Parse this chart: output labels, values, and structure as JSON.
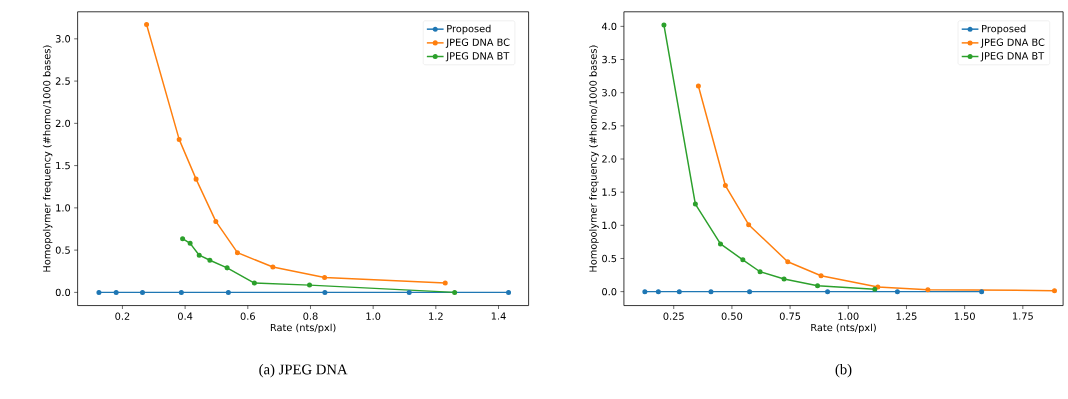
{
  "chart_data": [
    {
      "type": "line",
      "title": "(a) JPEG DNA",
      "xlabel": "Rate (nts/pxl)",
      "ylabel": "Homopolymer frequency (#homo/1000 bases)",
      "xlim": [
        0.057,
        1.496
      ],
      "ylim": [
        -0.156,
        3.32
      ],
      "xticks": [
        0.2,
        0.4,
        0.6,
        0.8,
        {
          "value": 1,
          "label": "1.0"
        },
        1.2,
        1.4
      ],
      "yticks": [
        {
          "value": 0,
          "label": "0.0"
        },
        0.5,
        {
          "value": 1,
          "label": "1.0"
        },
        1.5,
        {
          "value": 2,
          "label": "2.0"
        },
        2.5,
        {
          "value": 3,
          "label": "3.0"
        }
      ],
      "legend": "top right",
      "marker": "circle",
      "line_style": "solid",
      "grid": false,
      "series": [
        {
          "name": "Proposed",
          "color": "#1f77b4",
          "x": [
            0.125,
            0.18,
            0.264,
            0.388,
            0.538,
            0.846,
            1.115,
            1.432
          ],
          "values": [
            0,
            0,
            0,
            0,
            0,
            0,
            0,
            0
          ]
        },
        {
          "name": "JPEG DNA BC",
          "color": "#ff7f0e",
          "x": [
            0.277,
            0.381,
            0.435,
            0.498,
            0.567,
            0.68,
            0.845,
            1.23
          ],
          "values": [
            3.17,
            1.81,
            1.34,
            0.84,
            0.47,
            0.3,
            0.175,
            0.11
          ]
        },
        {
          "name": "JPEG DNA BT",
          "color": "#2ca02c",
          "x": [
            0.392,
            0.416,
            0.445,
            0.479,
            0.534,
            0.621,
            0.797,
            1.26
          ],
          "values": [
            0.635,
            0.58,
            0.44,
            0.38,
            0.29,
            0.11,
            0.086,
            0.0
          ]
        }
      ]
    },
    {
      "type": "line",
      "title": "(b)",
      "xlabel": "Rate (nts/pxl)",
      "ylabel": "Homopolymer frequency (#homo/1000 bases)",
      "xlim": [
        0.036,
        1.923
      ],
      "ylim": [
        -0.21,
        4.22
      ],
      "xticks": [
        0.25,
        {
          "value": 0.5,
          "label": "0.50"
        },
        0.75,
        {
          "value": 1,
          "label": "1.00"
        },
        1.25,
        {
          "value": 1.5,
          "label": "1.50"
        },
        1.75
      ],
      "yticks": [
        {
          "value": 0,
          "label": "0.0"
        },
        0.5,
        {
          "value": 1,
          "label": "1.0"
        },
        1.5,
        {
          "value": 2,
          "label": "2.0"
        },
        2.5,
        {
          "value": 3,
          "label": "3.0"
        },
        3.5,
        {
          "value": 4,
          "label": "4.0"
        }
      ],
      "legend": "top right",
      "marker": "circle",
      "line_style": "solid",
      "grid": false,
      "series": [
        {
          "name": "Proposed",
          "color": "#1f77b4",
          "x": [
            0.126,
            0.184,
            0.274,
            0.41,
            0.576,
            0.911,
            1.211,
            1.573
          ],
          "values": [
            0,
            0,
            0,
            0,
            0,
            0,
            0,
            0
          ]
        },
        {
          "name": "JPEG DNA BC",
          "color": "#ff7f0e",
          "x": [
            0.356,
            0.472,
            0.572,
            0.74,
            0.883,
            1.127,
            1.342,
            1.886
          ],
          "values": [
            3.1,
            1.6,
            1.01,
            0.45,
            0.24,
            0.07,
            0.03,
            0.015
          ]
        },
        {
          "name": "JPEG DNA BT",
          "color": "#2ca02c",
          "x": [
            0.208,
            0.343,
            0.451,
            0.547,
            0.621,
            0.724,
            0.868,
            1.114
          ],
          "values": [
            4.02,
            1.32,
            0.72,
            0.48,
            0.3,
            0.19,
            0.09,
            0.035
          ]
        }
      ]
    }
  ]
}
